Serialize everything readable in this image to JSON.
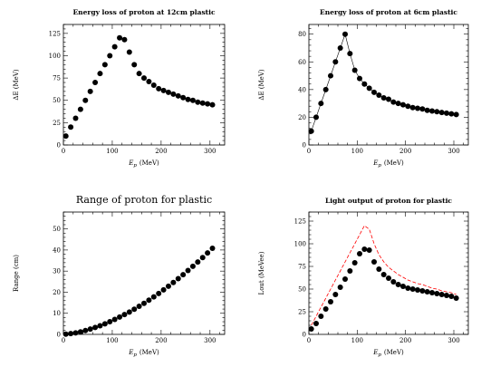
{
  "chart_data": [
    {
      "type": "scatter",
      "title": "Energy loss of proton at 12cm plastic",
      "xlabel": "E",
      "xlabel_sub": "p",
      "xlabel_unit": "(MeV)",
      "ylabel": "ΔE  (MeV)",
      "xlim": [
        0,
        330
      ],
      "ylim": [
        0,
        135
      ],
      "xticks": [
        "0",
        "100",
        "200",
        "300"
      ],
      "yticks": [
        "0",
        "25",
        "50",
        "75",
        "100",
        "125"
      ],
      "x": [
        5,
        15,
        25,
        35,
        45,
        55,
        65,
        75,
        85,
        95,
        105,
        115,
        125,
        135,
        145,
        155,
        165,
        175,
        185,
        195,
        205,
        215,
        225,
        235,
        245,
        255,
        265,
        275,
        285,
        295,
        305
      ],
      "y": [
        10,
        20,
        30,
        40,
        50,
        60,
        70,
        80,
        90,
        100,
        110,
        120,
        118,
        104,
        90,
        80,
        75,
        71,
        67,
        63,
        61,
        59,
        57,
        55,
        53,
        51,
        50,
        48,
        47,
        46,
        45
      ],
      "curve": false
    },
    {
      "type": "scatter",
      "title": "Energy loss of proton at 6cm plastic",
      "xlabel": "E",
      "xlabel_sub": "p",
      "xlabel_unit": "(MeV)",
      "ylabel": "ΔE  (MeV)",
      "xlim": [
        0,
        330
      ],
      "ylim": [
        0,
        87
      ],
      "xticks": [
        "0",
        "100",
        "200",
        "300"
      ],
      "yticks": [
        "0",
        "20",
        "40",
        "60",
        "80"
      ],
      "x": [
        5,
        15,
        25,
        35,
        45,
        55,
        65,
        75,
        85,
        95,
        105,
        115,
        125,
        135,
        145,
        155,
        165,
        175,
        185,
        195,
        205,
        215,
        225,
        235,
        245,
        255,
        265,
        275,
        285,
        295,
        305
      ],
      "y": [
        10,
        20,
        30,
        40,
        50,
        60,
        70,
        80,
        66,
        54,
        48,
        44,
        41,
        38,
        36,
        34,
        33,
        31,
        30,
        29,
        28,
        27,
        26.5,
        26,
        25,
        24.5,
        24,
        23.5,
        23,
        22.5,
        22
      ],
      "curve": true
    },
    {
      "type": "scatter",
      "title": "Range of proton for plastic",
      "xlabel": "E",
      "xlabel_sub": "p",
      "xlabel_unit": "(MeV)",
      "ylabel": "Range (cm)",
      "xlim": [
        0,
        330
      ],
      "ylim": [
        0,
        58
      ],
      "xticks": [
        "0",
        "100",
        "200",
        "300"
      ],
      "yticks": [
        "0",
        "10",
        "20",
        "30",
        "40",
        "50"
      ],
      "x": [
        5,
        15,
        25,
        35,
        45,
        55,
        65,
        75,
        85,
        95,
        105,
        115,
        125,
        135,
        145,
        155,
        165,
        175,
        185,
        195,
        205,
        215,
        225,
        235,
        245,
        255,
        265,
        275,
        285,
        295,
        305
      ],
      "y": [
        0.1,
        0.4,
        0.7,
        1.2,
        1.8,
        2.5,
        3.3,
        4.1,
        5,
        6,
        7.1,
        8.2,
        9.4,
        10.6,
        11.9,
        13.3,
        14.7,
        16.2,
        17.8,
        19.4,
        21.1,
        22.8,
        24.6,
        26.4,
        28.3,
        30.3,
        32.3,
        34.3,
        36.4,
        38.6,
        40.8
      ],
      "curve": false
    },
    {
      "type": "scatter",
      "title": "Light output of proton for plastic",
      "xlabel": "E",
      "xlabel_sub": "p",
      "xlabel_unit": "(MeV)",
      "ylabel": "Lout (MeVee)",
      "xlim": [
        0,
        330
      ],
      "ylim": [
        0,
        135
      ],
      "xticks": [
        "0",
        "100",
        "200",
        "300"
      ],
      "yticks": [
        "0",
        "25",
        "50",
        "75",
        "100",
        "125"
      ],
      "x": [
        5,
        15,
        25,
        35,
        45,
        55,
        65,
        75,
        85,
        95,
        105,
        115,
        125,
        135,
        145,
        155,
        165,
        175,
        185,
        195,
        205,
        215,
        225,
        235,
        245,
        255,
        265,
        275,
        285,
        295,
        305
      ],
      "y": [
        6,
        12,
        20,
        28,
        36,
        44,
        52,
        61,
        70,
        79,
        89,
        94,
        93,
        80,
        72,
        66,
        62,
        58,
        55,
        53,
        51,
        50,
        49,
        48,
        47,
        46,
        45,
        44,
        43,
        42,
        40
      ],
      "curve": false,
      "reference": {
        "color": "#ff0000",
        "dash": true,
        "x": [
          5,
          15,
          25,
          35,
          45,
          55,
          65,
          75,
          85,
          95,
          105,
          115,
          125,
          135,
          145,
          155,
          165,
          175,
          185,
          195,
          205,
          215,
          225,
          235,
          245,
          255,
          265,
          275,
          285,
          295,
          305
        ],
        "y": [
          10,
          20,
          30,
          40,
          50,
          60,
          70,
          80,
          90,
          100,
          110,
          120,
          116,
          100,
          88,
          80,
          74,
          70,
          66,
          63,
          60,
          58,
          56,
          55,
          53,
          51,
          50,
          48,
          47,
          46,
          44
        ]
      }
    }
  ]
}
